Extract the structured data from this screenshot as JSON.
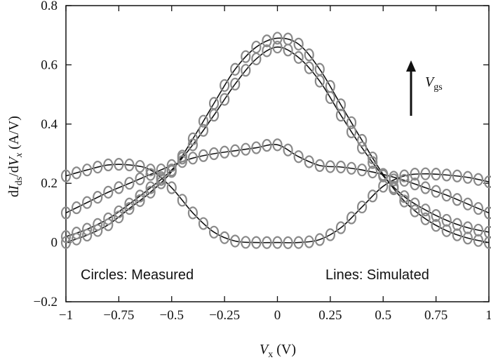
{
  "chart_data": {
    "type": "line",
    "xlabel": {
      "main": "V",
      "sub": "x",
      "unit": " (V)"
    },
    "ylabel": {
      "p1": "d",
      "I": "I",
      "ds": "ds",
      "slash": "/d",
      "V": "V",
      "x": "x",
      "unit": " (A/V)"
    },
    "xlim": [
      -1,
      1
    ],
    "ylim": [
      -0.2,
      0.8
    ],
    "xticks": [
      -1,
      -0.75,
      -0.5,
      -0.25,
      0,
      0.25,
      0.5,
      0.75,
      1
    ],
    "xtick_labels": [
      "−1",
      "−0.75",
      "−0.5",
      "−0.25",
      "0",
      "0.25",
      "0.5",
      "0.75",
      "1"
    ],
    "yticks": [
      -0.2,
      0,
      0.2,
      0.4,
      0.6,
      0.8
    ],
    "ytick_labels": [
      "−0.2",
      "0",
      "0.2",
      "0.4",
      "0.6",
      "0.8"
    ],
    "grid": false,
    "annotations": {
      "measured": "Circles: Measured",
      "simulated": "Lines: Simulated",
      "arrow_label_main": "V",
      "arrow_label_sub": "gs"
    },
    "marker_color": "#8a8a8a",
    "line_color": "#111111",
    "series": [
      {
        "x": [
          -1.0,
          -0.9,
          -0.8,
          -0.7,
          -0.6,
          -0.5,
          -0.4,
          -0.3,
          -0.2,
          -0.1,
          0.0,
          0.1,
          0.2,
          0.3,
          0.4,
          0.5,
          0.6,
          0.7,
          0.8,
          0.9,
          1.0
        ],
        "y": [
          0.225,
          0.245,
          0.262,
          0.262,
          0.245,
          0.185,
          0.1,
          0.035,
          0.005,
          0.0,
          0.0,
          0.0,
          0.01,
          0.05,
          0.12,
          0.19,
          0.225,
          0.232,
          0.228,
          0.22,
          0.205
        ]
      },
      {
        "x": [
          -1.0,
          -0.9,
          -0.8,
          -0.7,
          -0.6,
          -0.5,
          -0.4,
          -0.3,
          -0.2,
          -0.1,
          0.0,
          0.1,
          0.2,
          0.3,
          0.4,
          0.5,
          0.6,
          0.7,
          0.8,
          0.9,
          1.0
        ],
        "y": [
          0.1,
          0.135,
          0.17,
          0.2,
          0.23,
          0.26,
          0.285,
          0.3,
          0.31,
          0.32,
          0.33,
          0.29,
          0.26,
          0.255,
          0.245,
          0.23,
          0.21,
          0.185,
          0.16,
          0.13,
          0.1
        ]
      },
      {
        "x": [
          -1.0,
          -0.9,
          -0.8,
          -0.7,
          -0.6,
          -0.5,
          -0.4,
          -0.3,
          -0.2,
          -0.1,
          0.0,
          0.1,
          0.2,
          0.3,
          0.4,
          0.5,
          0.6,
          0.7,
          0.8,
          0.9,
          1.0
        ],
        "y": [
          0.02,
          0.045,
          0.08,
          0.13,
          0.185,
          0.245,
          0.33,
          0.43,
          0.535,
          0.62,
          0.66,
          0.625,
          0.545,
          0.43,
          0.32,
          0.225,
          0.155,
          0.11,
          0.075,
          0.05,
          0.035
        ]
      },
      {
        "x": [
          -1.0,
          -0.9,
          -0.8,
          -0.7,
          -0.6,
          -0.5,
          -0.4,
          -0.3,
          -0.2,
          -0.1,
          0.0,
          0.1,
          0.2,
          0.3,
          0.4,
          0.5,
          0.6,
          0.7,
          0.8,
          0.9,
          1.0
        ],
        "y": [
          0.0,
          0.025,
          0.06,
          0.115,
          0.17,
          0.24,
          0.35,
          0.47,
          0.585,
          0.66,
          0.69,
          0.67,
          0.585,
          0.465,
          0.345,
          0.23,
          0.14,
          0.08,
          0.04,
          0.015,
          0.0
        ]
      }
    ]
  }
}
